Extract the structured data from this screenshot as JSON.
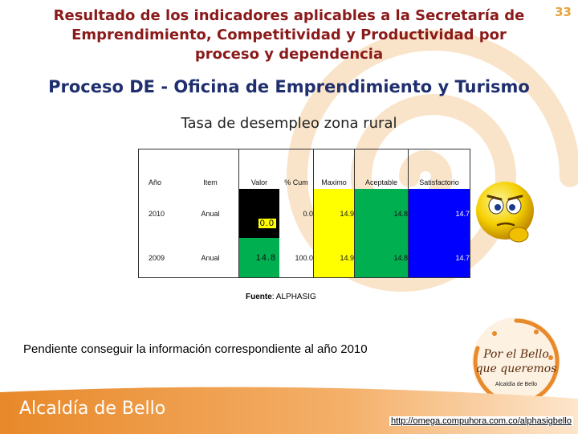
{
  "page_number": "33",
  "title": "Resultado de los indicadores aplicables a la Secretaría de Emprendimiento, Competitividad y Productividad  por proceso y dependencia",
  "process_title": "Proceso DE - Oficina de Emprendimiento y Turismo",
  "subtitle": "Tasa de desempleo zona rural",
  "table": {
    "headers": {
      "year": "Año",
      "item": "Item",
      "value": "Valor",
      "cum": "% Cum",
      "max": "Maximo",
      "acceptable": "Aceptable",
      "satisfactory": "Satisfactorio"
    },
    "rows": [
      {
        "year": "2010",
        "item": "Anual",
        "value": "0.0",
        "cum": "0.0",
        "max": "14.9",
        "acceptable": "14.8",
        "satisfactory": "14.7"
      },
      {
        "year": "2009",
        "item": "Anual",
        "value": "14.8",
        "cum": "100.0",
        "max": "14.9",
        "acceptable": "14.8",
        "satisfactory": "14.7"
      }
    ]
  },
  "source": {
    "label": "Fuente",
    "text": ": ALPHASIG"
  },
  "note": "Pendiente conseguir la información correspondiente al año 2010",
  "logo": {
    "line1": "Por el Bello",
    "line2": "que queremos",
    "line3": "Alcaldía de Bello"
  },
  "footer": {
    "brand": "Alcaldía de Bello",
    "url": "http://omega.compuhora.com.co/alphasigbello"
  },
  "colors": {
    "title": "#8b1a1a",
    "process_title": "#1f2f6e",
    "black": "#000000",
    "yellow": "#ffff00",
    "green": "#00b050",
    "blue": "#0000ff",
    "red": "#ff0000",
    "footer_orange": "#e8892a"
  },
  "icons": {
    "smiley": "worried-smiley-icon",
    "logo": "swirl-logo-icon"
  }
}
